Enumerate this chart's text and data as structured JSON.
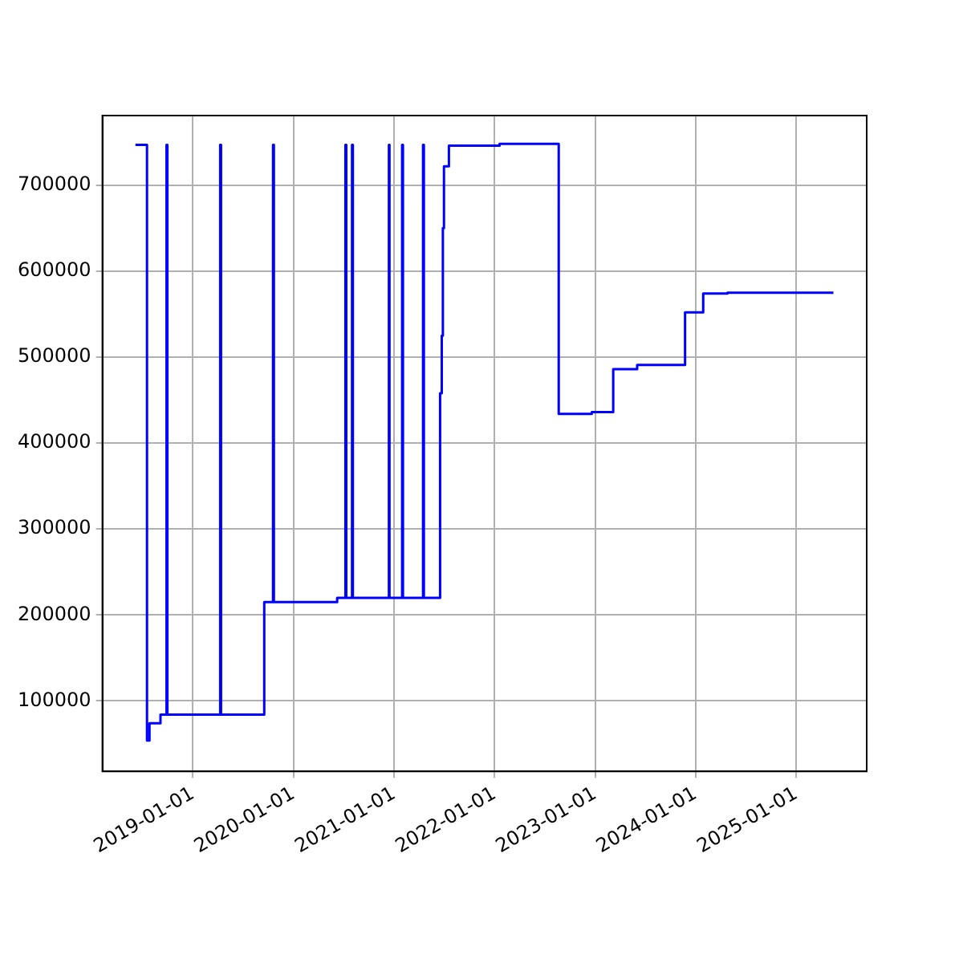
{
  "chart_data": {
    "type": "step",
    "color": "#0000ff",
    "grid": true,
    "x": [
      "2018-06-06",
      "2018-07-18",
      "2018-07-27",
      "2018-09-05",
      "2018-09-27",
      "2018-09-30",
      "2019-04-10",
      "2019-04-13",
      "2019-09-17",
      "2019-10-19",
      "2019-10-22",
      "2020-06-08",
      "2020-07-08",
      "2020-07-11",
      "2020-08-01",
      "2020-08-04",
      "2020-12-13",
      "2020-12-15",
      "2021-01-30",
      "2021-02-02",
      "2021-04-16",
      "2021-04-19",
      "2021-06-17",
      "2021-06-23",
      "2021-06-27",
      "2021-07-01",
      "2021-07-19",
      "2022-01-19",
      "2022-08-22",
      "2022-12-20",
      "2023-03-08",
      "2023-06-03",
      "2023-11-24",
      "2024-01-29",
      "2024-04-26",
      "2025-05-16"
    ],
    "values": [
      747000,
      54000,
      74000,
      84000,
      747000,
      84000,
      747000,
      84000,
      215000,
      747000,
      215000,
      220000,
      747000,
      220000,
      747000,
      220000,
      747000,
      220000,
      747000,
      220000,
      747000,
      220000,
      458000,
      525000,
      650000,
      722000,
      746000,
      748000,
      434000,
      436000,
      486000,
      491000,
      552000,
      574000,
      575000,
      575000
    ],
    "xlim": [
      "2018-02-06",
      "2025-09-14"
    ],
    "xticks": [
      "2019-01-01",
      "2020-01-01",
      "2021-01-01",
      "2022-01-01",
      "2023-01-01",
      "2024-01-01",
      "2025-01-01"
    ],
    "ylim": [
      18000,
      781000
    ],
    "yticks": [
      100000,
      200000,
      300000,
      400000,
      500000,
      600000,
      700000
    ]
  }
}
